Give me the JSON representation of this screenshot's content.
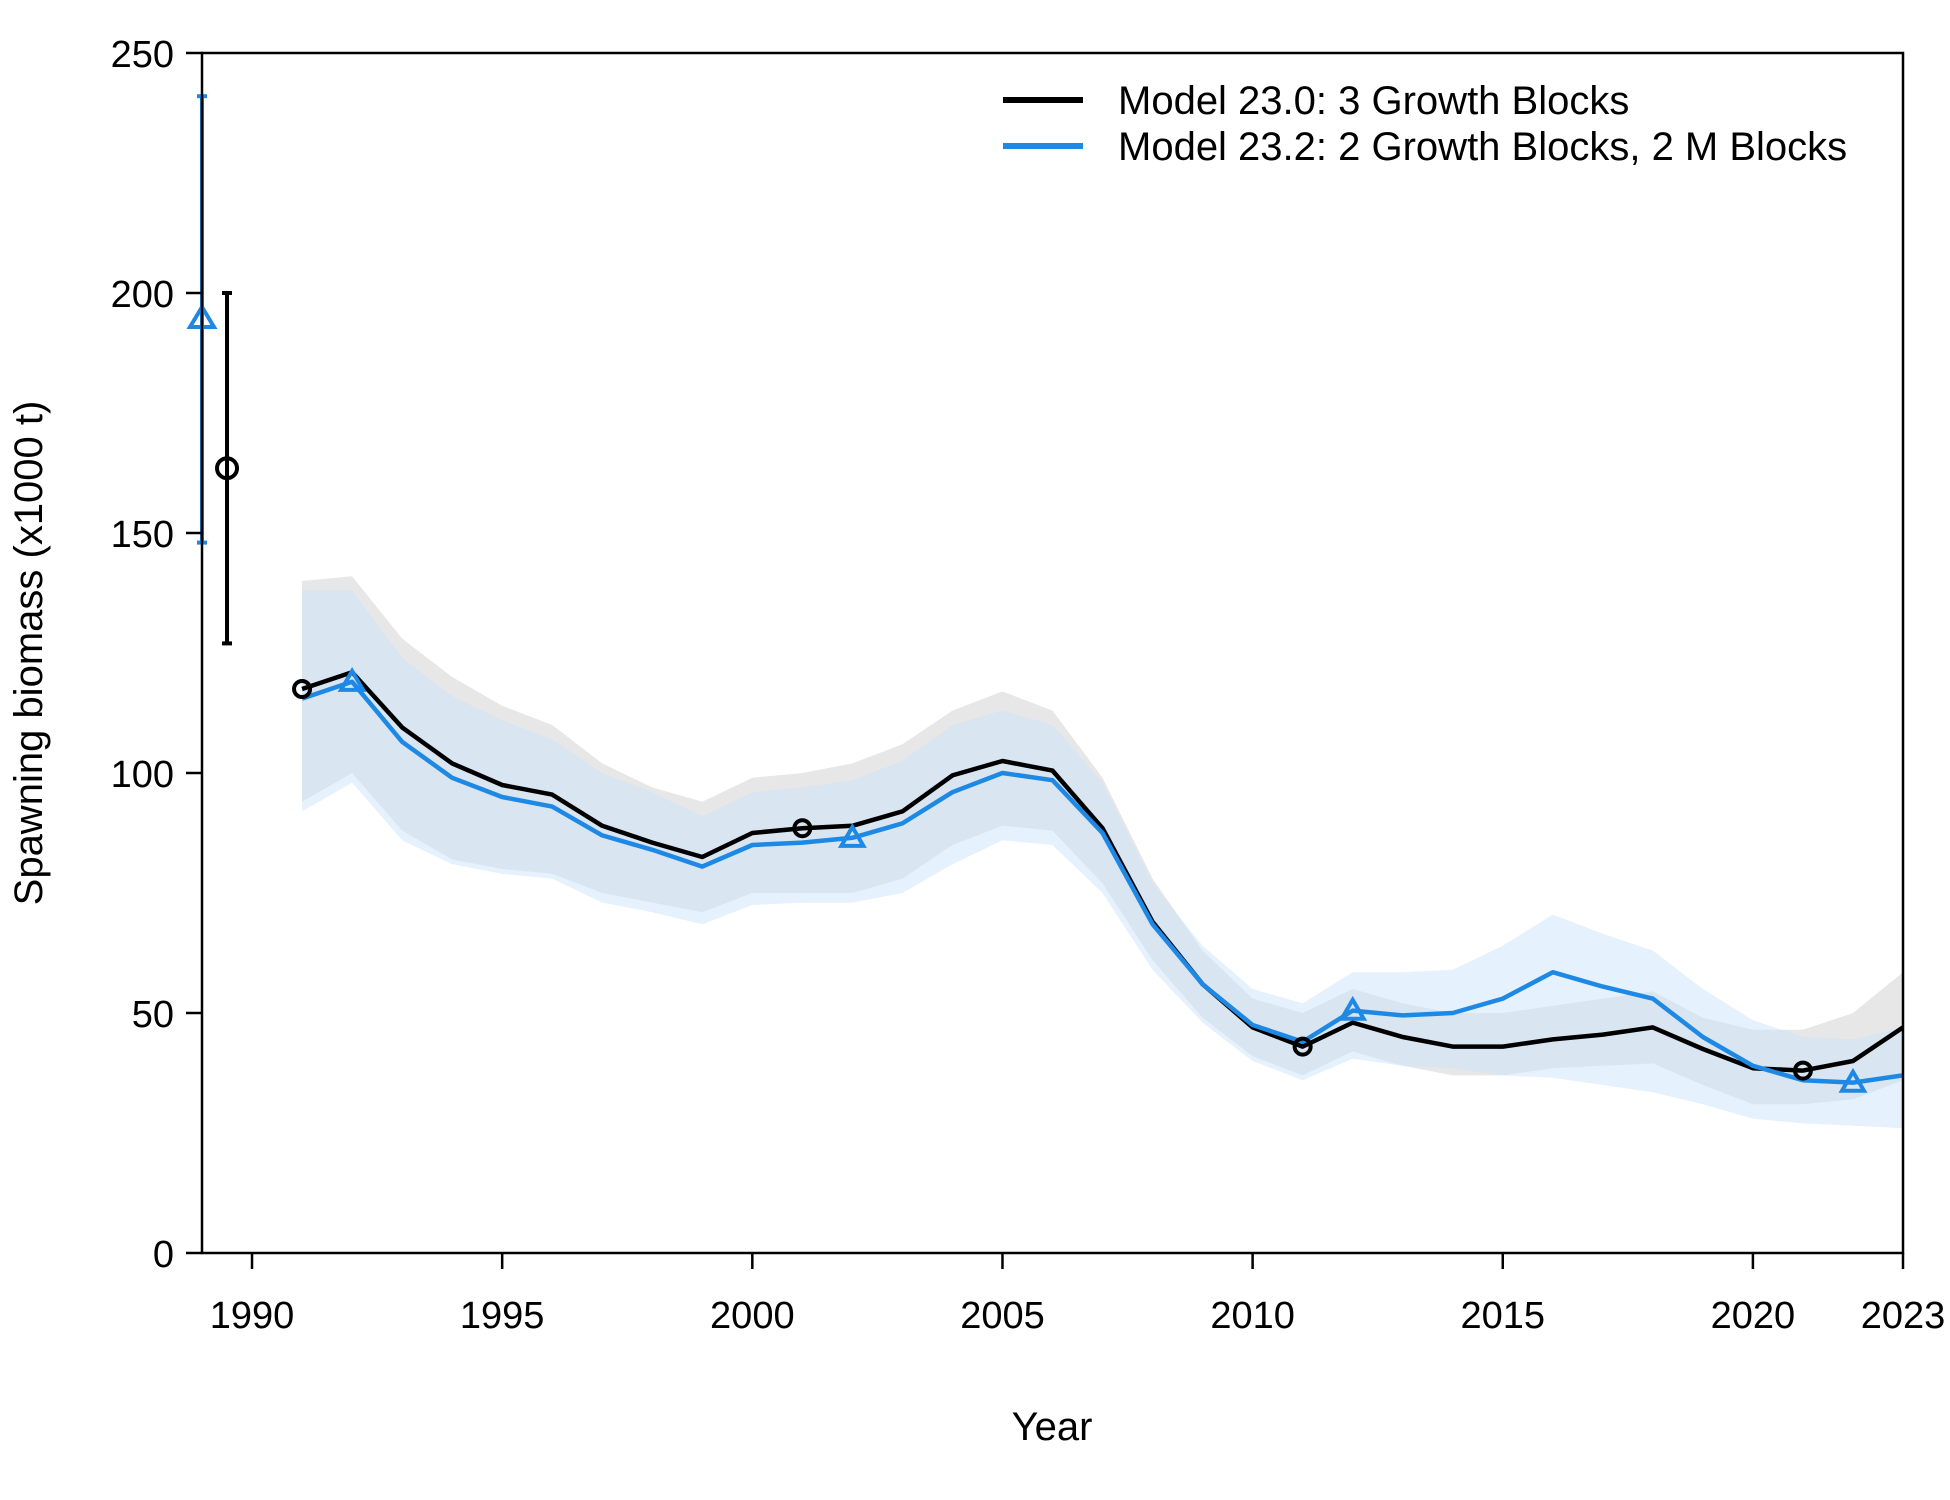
{
  "chart_data": {
    "type": "line",
    "title": "",
    "xlabel": "Year",
    "ylabel": "Spawning biomass (x1000 t)",
    "xlim": [
      1989,
      2023
    ],
    "ylim": [
      0,
      250
    ],
    "x_ticks": [
      1990,
      1995,
      2000,
      2005,
      2010,
      2015,
      2020,
      2023
    ],
    "y_ticks": [
      0,
      50,
      100,
      150,
      200,
      250
    ],
    "legend_position": "top-right",
    "colors": {
      "model_23_0": "#000000",
      "model_23_2": "#1E88E5",
      "band_23_0": "#D3D3D3",
      "band_23_2": "#CCE3FA",
      "overlap": "#C8D2E0"
    },
    "series": [
      {
        "name": "Model 23.0: 3 Growth Blocks",
        "key": "model_23_0",
        "marker": "circle",
        "virgin": {
          "x": 1989.5,
          "value": 163.5,
          "lower": 127,
          "upper": 200
        },
        "x": [
          1991,
          1992,
          1993,
          1994,
          1995,
          1996,
          1997,
          1998,
          1999,
          2000,
          2001,
          2002,
          2003,
          2004,
          2005,
          2006,
          2007,
          2008,
          2009,
          2010,
          2011,
          2012,
          2013,
          2014,
          2015,
          2016,
          2017,
          2018,
          2019,
          2020,
          2021,
          2022,
          2023
        ],
        "values": [
          117.5,
          121,
          109.5,
          102,
          97.5,
          95.5,
          89,
          85.5,
          82.5,
          87.5,
          88.5,
          89,
          92,
          99.5,
          102.5,
          100.5,
          88.5,
          69,
          56,
          47,
          43,
          48,
          45,
          43,
          43,
          44.5,
          45.5,
          47,
          42.5,
          38.5,
          38,
          40,
          47
        ],
        "lower": [
          94,
          100,
          88,
          82,
          80,
          79,
          75,
          73,
          71,
          75,
          75,
          75,
          78,
          85,
          89,
          88,
          77,
          61,
          49,
          41,
          37,
          42,
          39,
          37,
          37,
          38.5,
          39,
          39.5,
          35,
          31,
          31,
          32,
          36
        ],
        "upper": [
          140,
          141,
          128,
          120,
          114,
          110,
          102,
          97,
          94,
          99,
          100,
          102,
          106,
          113,
          117,
          113,
          99,
          78,
          63,
          53,
          50,
          55,
          52,
          50,
          50,
          51.5,
          53,
          54.5,
          49,
          46.5,
          46.5,
          50,
          58.5
        ],
        "marker_x": [
          1991,
          2001,
          2011,
          2021
        ]
      },
      {
        "name": "Model 23.2: 2 Growth Blocks, 2 M Blocks",
        "key": "model_23_2",
        "marker": "triangle",
        "virgin": {
          "x": 1989,
          "value": 195,
          "lower": 148,
          "upper": 241
        },
        "x": [
          1991,
          1992,
          1993,
          1994,
          1995,
          1996,
          1997,
          1998,
          1999,
          2000,
          2001,
          2002,
          2003,
          2004,
          2005,
          2006,
          2007,
          2008,
          2009,
          2010,
          2011,
          2012,
          2013,
          2014,
          2015,
          2016,
          2017,
          2018,
          2019,
          2020,
          2021,
          2022,
          2023
        ],
        "values": [
          115.5,
          119,
          106.5,
          99,
          95,
          93,
          87,
          84,
          80.5,
          85,
          85.5,
          86.5,
          89.5,
          96,
          100,
          98.5,
          87.5,
          68.5,
          56,
          47.5,
          44,
          50.5,
          49.5,
          50,
          53,
          58.5,
          55.5,
          53,
          45,
          39,
          36,
          35.5,
          37
        ],
        "lower": [
          92,
          98,
          86,
          81,
          79,
          78,
          73,
          71,
          68.5,
          72.5,
          73,
          73,
          75,
          81,
          86,
          85,
          75,
          59,
          48,
          40,
          36,
          40.5,
          39,
          38.5,
          37,
          36.5,
          35,
          33.5,
          31,
          28,
          27,
          26.5,
          26
        ],
        "upper": [
          138,
          138,
          124,
          116,
          111,
          107,
          100,
          96,
          91,
          96,
          97,
          98.5,
          102.5,
          110,
          113,
          110,
          98,
          77,
          64,
          55,
          52,
          58.5,
          58.5,
          59,
          64,
          70.5,
          66.5,
          63,
          55,
          48.5,
          45,
          44.5,
          47
        ],
        "marker_x": [
          1989,
          1992,
          2002,
          2012,
          2022
        ]
      }
    ]
  }
}
